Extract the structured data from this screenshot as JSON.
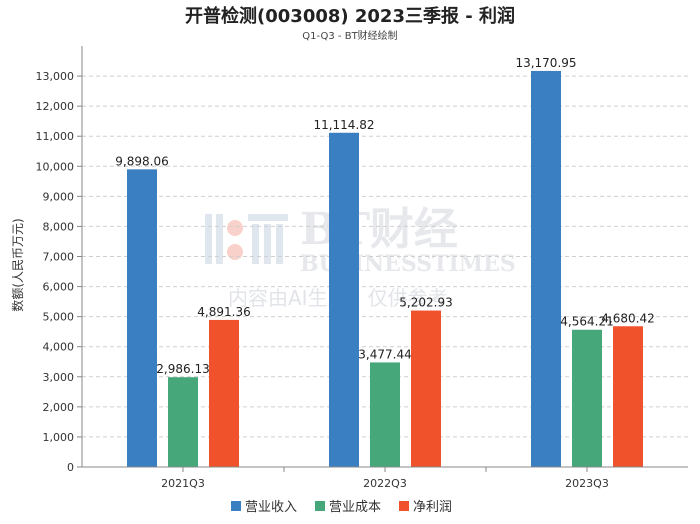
{
  "chart_data": {
    "type": "bar",
    "title": "开普检测(003008) 2023三季报 - 利润",
    "subtitle": "Q1-Q3 - BT财经绘制",
    "ylabel": "数额(人民币万元)",
    "xlabel": "",
    "ylim": [
      0,
      14000
    ],
    "yticks": [
      0,
      1000,
      2000,
      3000,
      4000,
      5000,
      6000,
      7000,
      8000,
      9000,
      10000,
      11000,
      12000,
      13000
    ],
    "ytick_labels": [
      "0",
      "1,000",
      "2,000",
      "3,000",
      "4,000",
      "5,000",
      "6,000",
      "7,000",
      "8,000",
      "9,000",
      "10,000",
      "11,000",
      "12,000",
      "13,000"
    ],
    "grid": true,
    "legend_position": "bottom",
    "categories": [
      "2021Q3",
      "2022Q3",
      "2023Q3"
    ],
    "series": [
      {
        "name": "营业收入",
        "color": "#3a7fc1",
        "values": [
          9898.06,
          11114.82,
          13170.95
        ],
        "labels": [
          "9,898.06",
          "11,114.82",
          "13,170.95"
        ]
      },
      {
        "name": "营业成本",
        "color": "#46a87a",
        "values": [
          2986.13,
          3477.44,
          4564.21
        ],
        "labels": [
          "2,986.13",
          "3,477.44",
          "4,564.21"
        ]
      },
      {
        "name": "净利润",
        "color": "#f0522c",
        "values": [
          4891.36,
          5202.93,
          4680.42
        ],
        "labels": [
          "4,891.36",
          "5,202.93",
          "4,680.42"
        ]
      }
    ]
  },
  "watermark": {
    "brand": "BT财经",
    "brand_en": "BUSINESSTIMES",
    "notice": "内容由AI生成，仅供参考"
  }
}
